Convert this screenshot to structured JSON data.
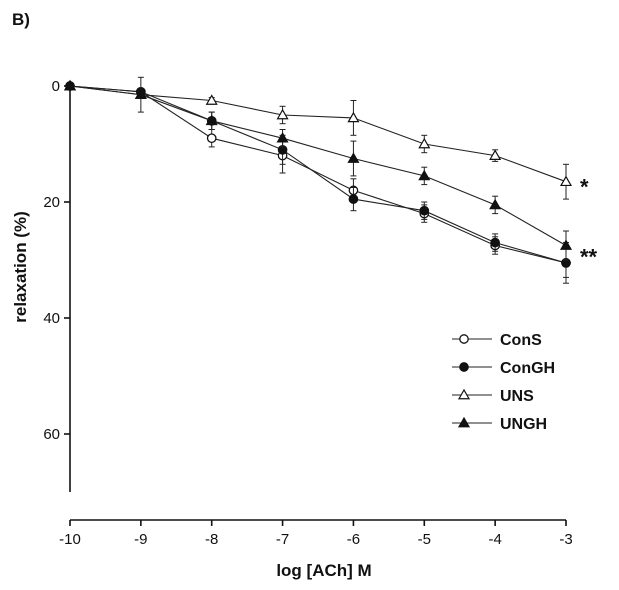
{
  "panel_label": "B)",
  "chart_data": {
    "type": "line",
    "title": "",
    "xlabel": "log [ACh] M",
    "ylabel": "relaxation (%)",
    "x": [
      -10,
      -9,
      -8,
      -7,
      -6,
      -5,
      -4,
      -3
    ],
    "xlim": [
      -10,
      -3
    ],
    "ylim": [
      0,
      70
    ],
    "y_inverted": true,
    "x_ticks": [
      "-10",
      "-9",
      "-8",
      "-7",
      "-6",
      "-5",
      "-4",
      "-3"
    ],
    "y_ticks": [
      "0",
      "20",
      "40",
      "60"
    ],
    "y_tick_values": [
      0,
      20,
      40,
      60
    ],
    "grid": false,
    "legend_position": "bottom-right",
    "series": [
      {
        "name": "ConS",
        "marker": "open-circle",
        "values": [
          0,
          1.0,
          9.0,
          12.0,
          18.0,
          22.0,
          27.5,
          30.5
        ],
        "errors": [
          0,
          0.5,
          1.5,
          3.0,
          2.0,
          1.5,
          1.5,
          2.5
        ]
      },
      {
        "name": "ConGH",
        "marker": "filled-circle",
        "values": [
          0,
          1.0,
          6.0,
          11.0,
          19.5,
          21.5,
          27.0,
          30.5
        ],
        "errors": [
          0,
          0.5,
          1.5,
          2.5,
          2.0,
          1.5,
          1.5,
          3.5
        ]
      },
      {
        "name": "UNS",
        "marker": "open-triangle",
        "values": [
          0,
          1.5,
          2.5,
          5.0,
          5.5,
          10.0,
          12.0,
          16.5
        ],
        "errors": [
          0,
          0.5,
          0.5,
          1.5,
          3.0,
          1.5,
          1.0,
          3.0
        ]
      },
      {
        "name": "UNGH",
        "marker": "filled-triangle",
        "values": [
          0,
          1.5,
          6.0,
          9.0,
          12.5,
          15.5,
          20.5,
          27.5
        ],
        "errors": [
          0,
          3.0,
          1.5,
          1.5,
          3.0,
          1.5,
          1.5,
          2.5
        ]
      }
    ],
    "annotations": [
      {
        "text": "*",
        "x": -3,
        "y": 16.5
      },
      {
        "text": "**",
        "x": -3,
        "y": 28.5
      }
    ]
  }
}
